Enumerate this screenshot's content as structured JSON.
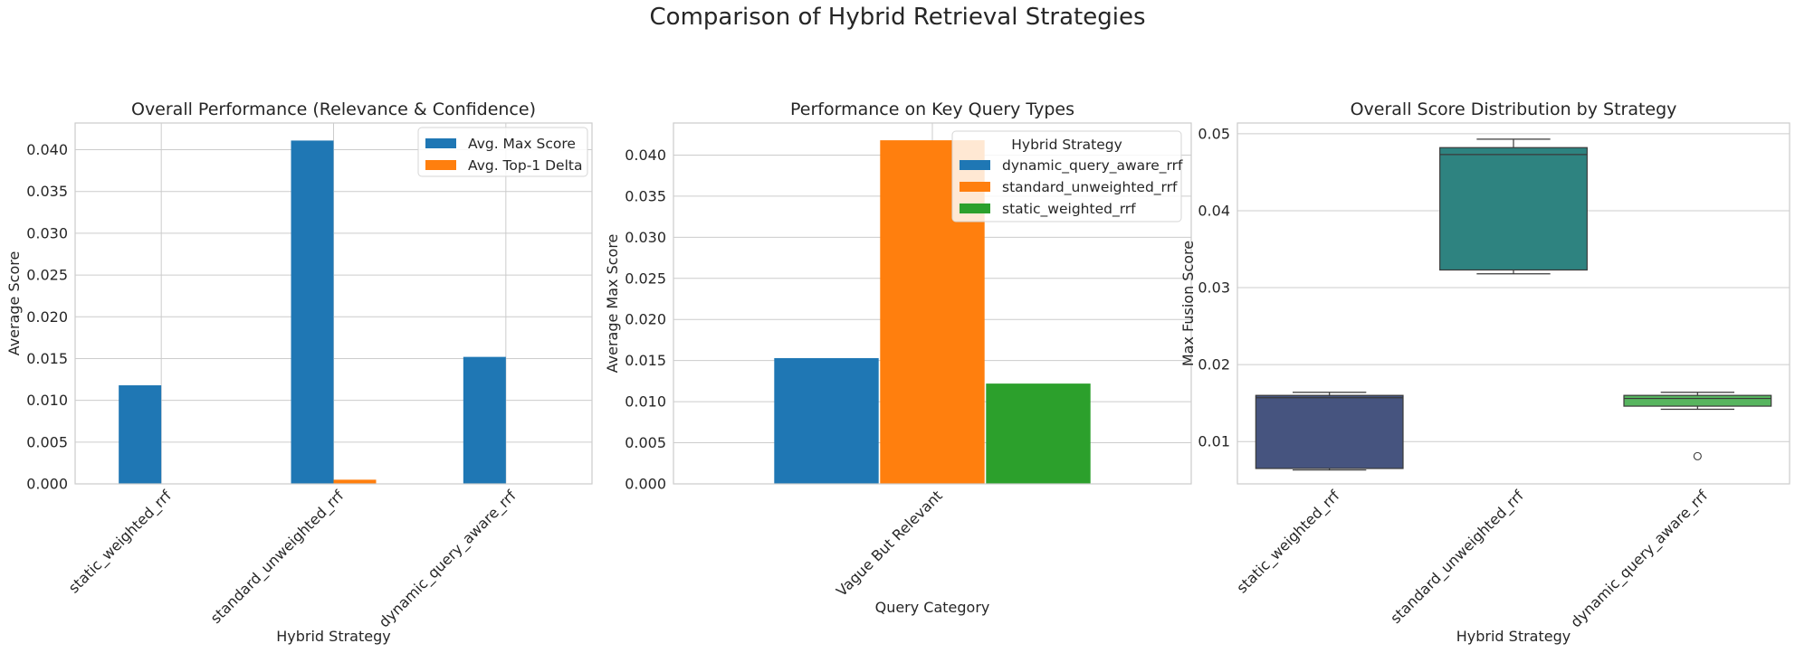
{
  "figure": {
    "suptitle": "Comparison of Hybrid Retrieval Strategies"
  },
  "chart_data": [
    {
      "type": "bar",
      "title": "Overall Performance (Relevance & Confidence)",
      "xlabel": "Hybrid Strategy",
      "ylabel": "Average Score",
      "categories": [
        "static_weighted_rrf",
        "standard_unweighted_rrf",
        "dynamic_query_aware_rrf"
      ],
      "series": [
        {
          "name": "Avg. Max Score",
          "color": "#1f77b4",
          "values": [
            0.0118,
            0.0411,
            0.0152
          ]
        },
        {
          "name": "Avg. Top-1 Delta",
          "color": "#ff7f0e",
          "values": [
            0.0,
            0.0005,
            0.0
          ]
        }
      ],
      "ylim": [
        0,
        0.0432
      ],
      "yticks": [
        "0.000",
        "0.005",
        "0.010",
        "0.015",
        "0.020",
        "0.025",
        "0.030",
        "0.035",
        "0.040"
      ],
      "grid": true,
      "legend": "top-right"
    },
    {
      "type": "bar",
      "title": "Performance on Key Query Types",
      "xlabel": "Query Category",
      "ylabel": "Average Max Score",
      "categories": [
        "Vague But Relevant"
      ],
      "legend_title": "Hybrid Strategy",
      "series": [
        {
          "name": "dynamic_query_aware_rrf",
          "color": "#1f77b4",
          "values": [
            0.0153
          ]
        },
        {
          "name": "standard_unweighted_rrf",
          "color": "#ff7f0e",
          "values": [
            0.0418
          ]
        },
        {
          "name": "static_weighted_rrf",
          "color": "#2ca02c",
          "values": [
            0.0122
          ]
        }
      ],
      "ylim": [
        0,
        0.0439
      ],
      "yticks": [
        "0.000",
        "0.005",
        "0.010",
        "0.015",
        "0.020",
        "0.025",
        "0.030",
        "0.035",
        "0.040"
      ],
      "grid": true,
      "legend": "top-right"
    },
    {
      "type": "box",
      "title": "Overall Score Distribution by Strategy",
      "xlabel": "Hybrid Strategy",
      "ylabel": "Max Fusion Score",
      "categories": [
        "static_weighted_rrf",
        "standard_unweighted_rrf",
        "dynamic_query_aware_rrf"
      ],
      "boxes": [
        {
          "color": "#46547f",
          "whislo": 0.0063,
          "q1": 0.0065,
          "med": 0.0157,
          "q3": 0.016,
          "whishi": 0.0164,
          "fliers": []
        },
        {
          "color": "#2e8380",
          "whislo": 0.0318,
          "q1": 0.0323,
          "med": 0.0473,
          "q3": 0.0482,
          "whishi": 0.0493,
          "fliers": []
        },
        {
          "color": "#57b55f",
          "whislo": 0.0142,
          "q1": 0.0146,
          "med": 0.0156,
          "q3": 0.016,
          "whishi": 0.0164,
          "fliers": [
            0.0081
          ]
        }
      ],
      "ylim": [
        0.0045,
        0.0514
      ],
      "yticks": [
        0.01,
        0.02,
        0.03,
        0.04,
        0.05
      ],
      "ytick_labels": [
        "0.01",
        "0.02",
        "0.03",
        "0.04",
        "0.05"
      ],
      "grid": true
    }
  ]
}
